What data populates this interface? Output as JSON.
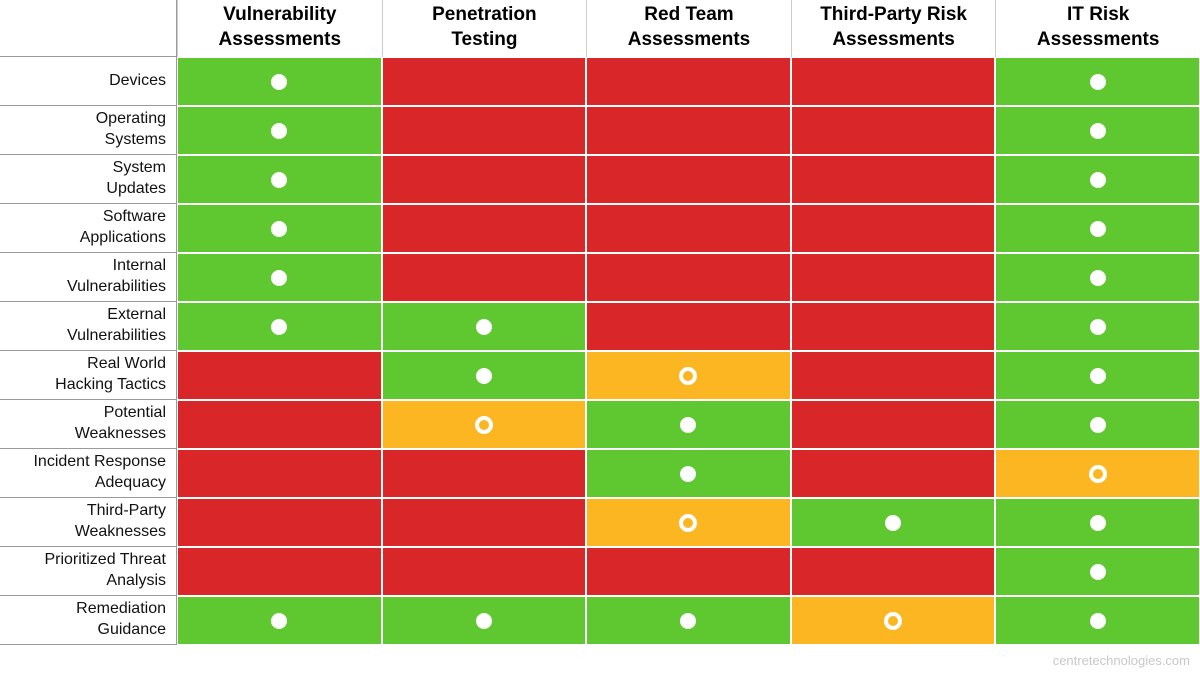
{
  "chart_data": {
    "type": "table",
    "title": "",
    "columns": [
      "Vulnerability\nAssessments",
      "Penetration\nTesting",
      "Red Team\nAssessments",
      "Third-Party Risk\nAssessments",
      "IT Risk\nAssessments"
    ],
    "rows": [
      {
        "label": "Devices",
        "cells": [
          "covered",
          "not-covered",
          "not-covered",
          "not-covered",
          "covered"
        ]
      },
      {
        "label": "Operating\nSystems",
        "cells": [
          "covered",
          "not-covered",
          "not-covered",
          "not-covered",
          "covered"
        ]
      },
      {
        "label": "System\nUpdates",
        "cells": [
          "covered",
          "not-covered",
          "not-covered",
          "not-covered",
          "covered"
        ]
      },
      {
        "label": "Software\nApplications",
        "cells": [
          "covered",
          "not-covered",
          "not-covered",
          "not-covered",
          "covered"
        ]
      },
      {
        "label": "Internal\nVulnerabilities",
        "cells": [
          "covered",
          "not-covered",
          "not-covered",
          "not-covered",
          "covered"
        ]
      },
      {
        "label": "External\nVulnerabilities",
        "cells": [
          "covered",
          "covered",
          "not-covered",
          "not-covered",
          "covered"
        ]
      },
      {
        "label": "Real World\nHacking Tactics",
        "cells": [
          "not-covered",
          "covered",
          "partial",
          "not-covered",
          "covered"
        ]
      },
      {
        "label": "Potential\nWeaknesses",
        "cells": [
          "not-covered",
          "partial",
          "covered",
          "not-covered",
          "covered"
        ]
      },
      {
        "label": "Incident Response\nAdequacy",
        "cells": [
          "not-covered",
          "not-covered",
          "covered",
          "not-covered",
          "partial"
        ]
      },
      {
        "label": "Third-Party\nWeaknesses",
        "cells": [
          "not-covered",
          "not-covered",
          "partial",
          "covered",
          "covered"
        ]
      },
      {
        "label": "Prioritized Threat\nAnalysis",
        "cells": [
          "not-covered",
          "not-covered",
          "not-covered",
          "not-covered",
          "covered"
        ]
      },
      {
        "label": "Remediation\nGuidance",
        "cells": [
          "covered",
          "covered",
          "covered",
          "partial",
          "covered"
        ]
      }
    ],
    "states": {
      "covered": {
        "color": "#5FC730",
        "icon": "filled-dot-icon"
      },
      "partial": {
        "color": "#FBB621",
        "icon": "hollow-dot-icon"
      },
      "not-covered": {
        "color": "#D92629",
        "icon": "none"
      }
    },
    "layout": {
      "grid": "off",
      "legend_position": "none"
    }
  },
  "footer": {
    "watermark": "centretechnologies.com"
  }
}
